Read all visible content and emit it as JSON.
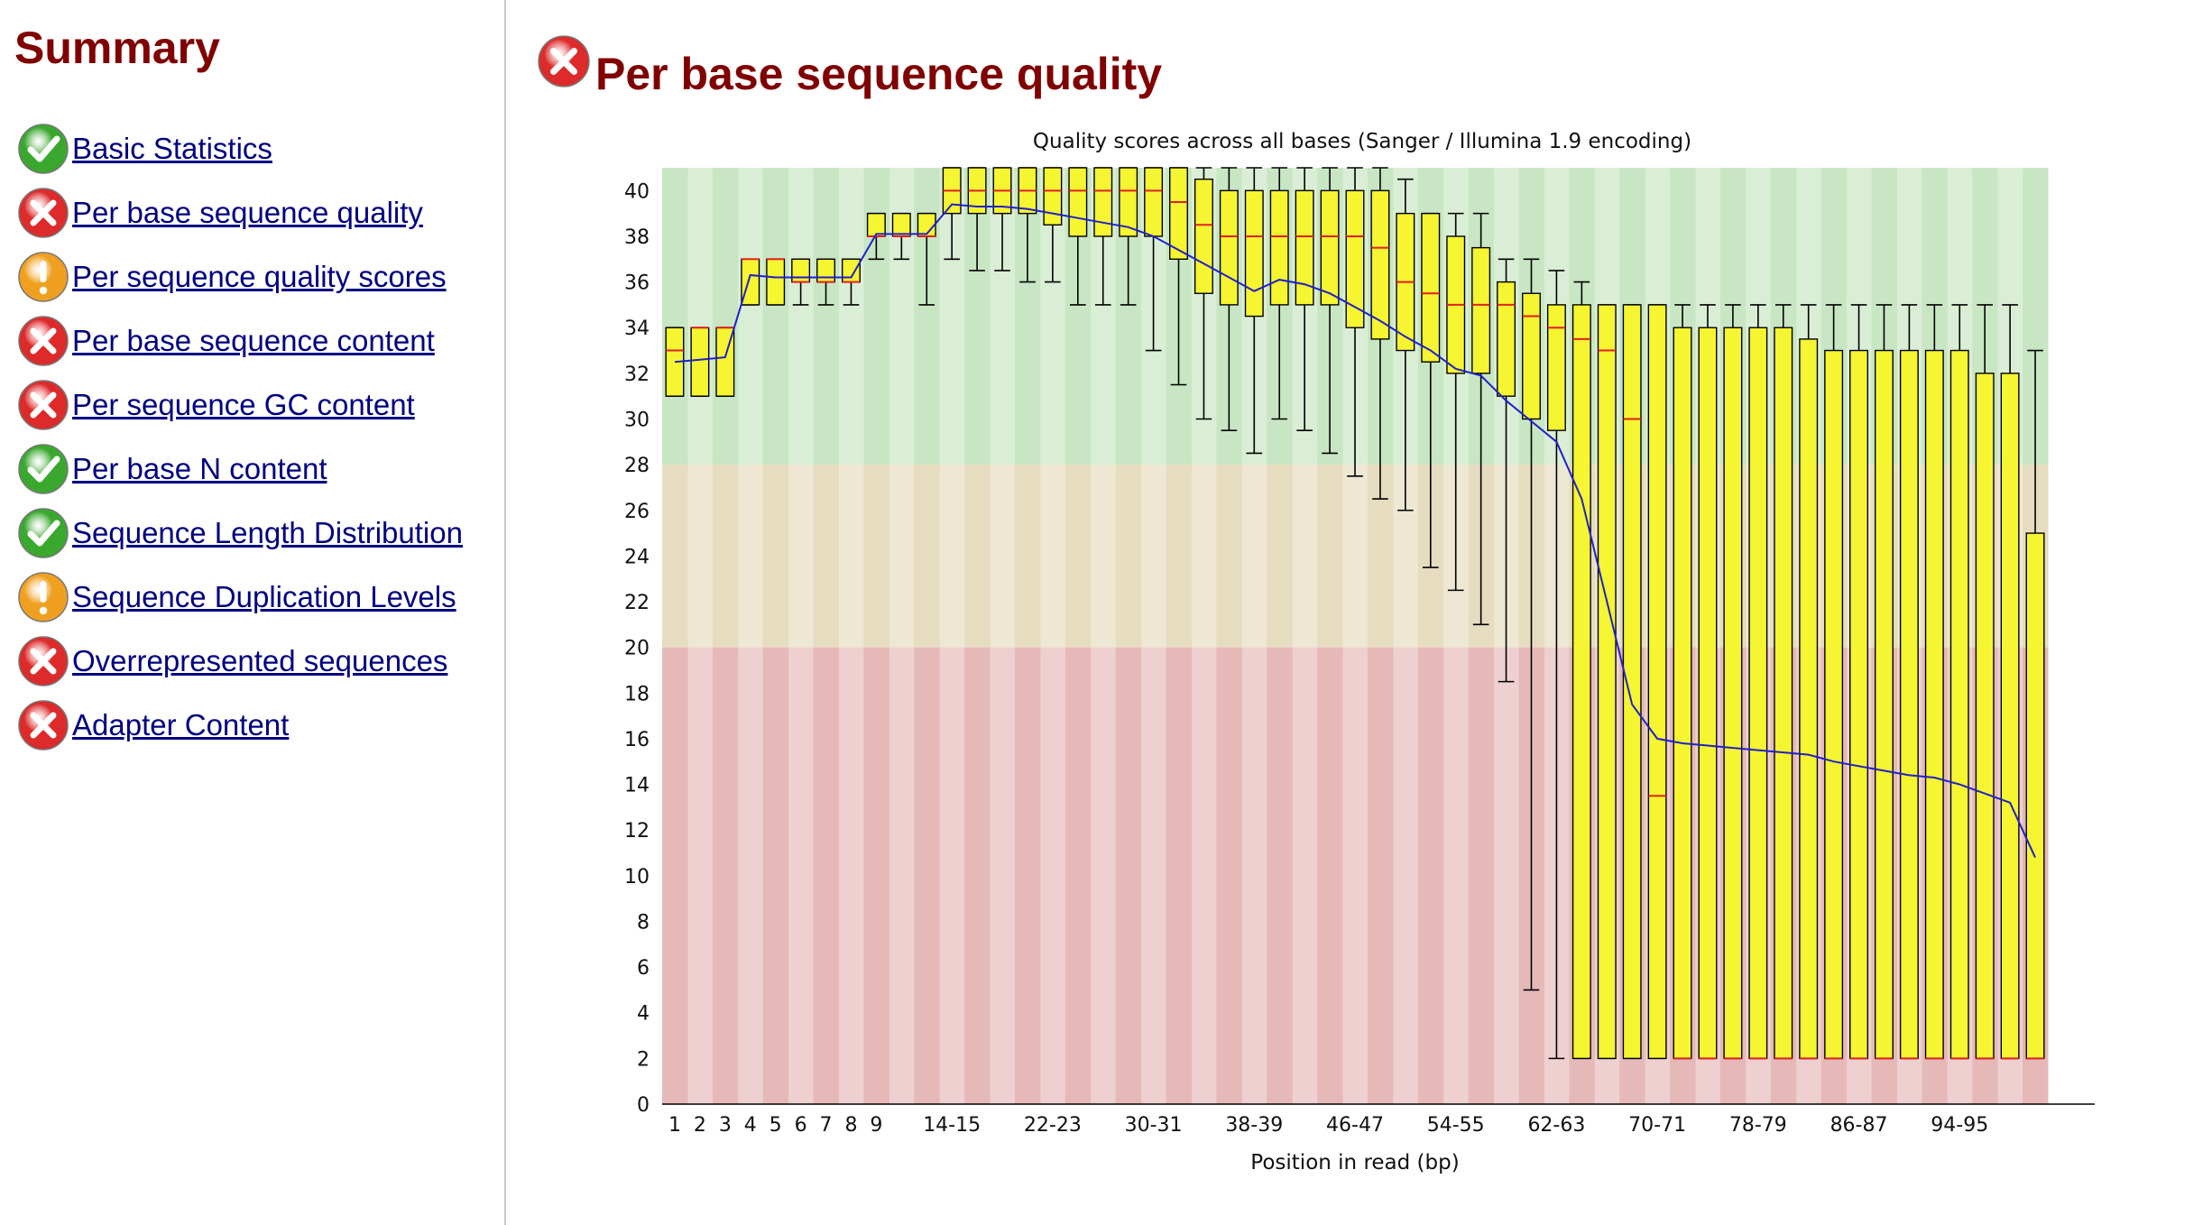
{
  "sidebar": {
    "title": "Summary",
    "modules": [
      {
        "label": "Basic Statistics",
        "status": "pass"
      },
      {
        "label": "Per base sequence quality",
        "status": "fail"
      },
      {
        "label": "Per sequence quality scores",
        "status": "warn"
      },
      {
        "label": "Per base sequence content",
        "status": "fail"
      },
      {
        "label": "Per sequence GC content",
        "status": "fail"
      },
      {
        "label": "Per base N content",
        "status": "pass"
      },
      {
        "label": "Sequence Length Distribution",
        "status": "pass"
      },
      {
        "label": "Sequence Duplication Levels",
        "status": "warn"
      },
      {
        "label": "Overrepresented sequences",
        "status": "fail"
      },
      {
        "label": "Adapter Content",
        "status": "fail"
      }
    ]
  },
  "main": {
    "title": "Per base sequence quality",
    "status": "fail"
  },
  "icons": {
    "pass": "check-circle-icon",
    "warn": "exclamation-circle-icon",
    "fail": "cross-circle-icon"
  },
  "colors": {
    "heading": "#800000",
    "link": "#000080",
    "pass": "#3aa82e",
    "warn": "#f0a020",
    "fail": "#dd2a2a",
    "zone_good": "#c8e6c3",
    "zone_ok": "#e6dcc0",
    "zone_poor": "#e6b9b9",
    "box_fill": "#f5f531",
    "median": "#e02020",
    "mean_line": "#2020c8"
  },
  "chart_data": {
    "type": "boxplot",
    "title": "Quality scores across all bases (Sanger / Illumina 1.9 encoding)",
    "xlabel": "Position in read (bp)",
    "ylabel": "",
    "ylim": [
      0,
      41
    ],
    "yticks": [
      0,
      2,
      4,
      6,
      8,
      10,
      12,
      14,
      16,
      18,
      20,
      22,
      24,
      26,
      28,
      30,
      32,
      34,
      36,
      38,
      40
    ],
    "zones": [
      {
        "name": "good",
        "from": 28,
        "to": 41
      },
      {
        "name": "reasonable",
        "from": 20,
        "to": 28
      },
      {
        "name": "poor",
        "from": 0,
        "to": 20
      }
    ],
    "x_tick_labels": [
      "1",
      "2",
      "3",
      "4",
      "5",
      "6",
      "7",
      "8",
      "9",
      "14-15",
      "22-23",
      "30-31",
      "38-39",
      "46-47",
      "54-55",
      "62-63",
      "70-71",
      "78-79",
      "86-87",
      "94-95"
    ],
    "categories": [
      "1",
      "2",
      "3",
      "4",
      "5",
      "6",
      "7",
      "8",
      "9",
      "10-11",
      "12-13",
      "14-15",
      "16-17",
      "18-19",
      "20-21",
      "22-23",
      "24-25",
      "26-27",
      "28-29",
      "30-31",
      "32-33",
      "34-35",
      "36-37",
      "38-39",
      "40-41",
      "42-43",
      "44-45",
      "46-47",
      "48-49",
      "50-51",
      "52-53",
      "54-55",
      "56-57",
      "58-59",
      "60-61",
      "62-63",
      "64-65",
      "66-67",
      "68-69",
      "70-71",
      "72-73",
      "74-75",
      "76-77",
      "78-79",
      "80-81",
      "82-83",
      "84-85",
      "86-87",
      "88-89",
      "90-91",
      "92-93",
      "94-95",
      "96-97",
      "98-99",
      "100-101"
    ],
    "series": [
      {
        "name": "whisker_low",
        "values": [
          31,
          31,
          31,
          35,
          35,
          35,
          35,
          35,
          37,
          37,
          35,
          37,
          36.5,
          36.5,
          36,
          36,
          35,
          35,
          35,
          33,
          31.5,
          30,
          29.5,
          28.5,
          30,
          29.5,
          28.5,
          27.5,
          26.5,
          26,
          23.5,
          22.5,
          21,
          18.5,
          5,
          2,
          2,
          2,
          2,
          2,
          2,
          2,
          2,
          2,
          2,
          2,
          2,
          2,
          2,
          2,
          2,
          2,
          2,
          2,
          2
        ]
      },
      {
        "name": "q1",
        "values": [
          31,
          31,
          31,
          35,
          35,
          36,
          36,
          36,
          38,
          38,
          38,
          39,
          39,
          39,
          39,
          38.5,
          38,
          38,
          38,
          38,
          37,
          35.5,
          35,
          34.5,
          35,
          35,
          35,
          34,
          33.5,
          33,
          32.5,
          32,
          32,
          31,
          30,
          29.5,
          2,
          2,
          2,
          2,
          2,
          2,
          2,
          2,
          2,
          2,
          2,
          2,
          2,
          2,
          2,
          2,
          2,
          2,
          2
        ]
      },
      {
        "name": "median",
        "values": [
          33,
          34,
          34,
          37,
          37,
          36,
          36,
          36,
          38,
          38,
          38,
          40,
          40,
          40,
          40,
          40,
          40,
          40,
          40,
          40,
          39.5,
          38.5,
          38,
          38,
          38,
          38,
          38,
          38,
          37.5,
          36,
          35.5,
          35,
          35,
          35,
          34.5,
          34,
          33.5,
          33,
          30,
          13.5,
          2,
          2,
          2,
          2,
          2,
          2,
          2,
          2,
          2,
          2,
          2,
          2,
          2,
          2,
          2
        ]
      },
      {
        "name": "q3",
        "values": [
          34,
          34,
          34,
          37,
          37,
          37,
          37,
          37,
          39,
          39,
          39,
          41,
          41,
          41,
          41,
          41,
          41,
          41,
          41,
          41,
          41,
          40.5,
          40,
          40,
          40,
          40,
          40,
          40,
          40,
          39,
          39,
          38,
          37.5,
          36,
          35.5,
          35,
          35,
          35,
          35,
          35,
          34,
          34,
          34,
          34,
          34,
          33.5,
          33,
          33,
          33,
          33,
          33,
          33,
          32,
          32,
          25
        ]
      },
      {
        "name": "whisker_high",
        "values": [
          34,
          34,
          34,
          37,
          37,
          37,
          37,
          37,
          39,
          39,
          39,
          41,
          41,
          41,
          41,
          41,
          41,
          41,
          41,
          41,
          41,
          41,
          41,
          41,
          41,
          41,
          41,
          41,
          41,
          40.5,
          39,
          39,
          39,
          37,
          37,
          36.5,
          36,
          35,
          35,
          35,
          35,
          35,
          35,
          35,
          35,
          35,
          35,
          35,
          35,
          35,
          35,
          35,
          35,
          35,
          33
        ]
      },
      {
        "name": "mean",
        "values": [
          32.5,
          32.6,
          32.7,
          36.3,
          36.2,
          36.2,
          36.2,
          36.2,
          38.1,
          38.1,
          38.1,
          39.4,
          39.3,
          39.3,
          39.2,
          39.0,
          38.8,
          38.6,
          38.4,
          38.0,
          37.4,
          36.8,
          36.2,
          35.6,
          36.1,
          35.9,
          35.5,
          34.9,
          34.3,
          33.6,
          33.0,
          32.2,
          31.9,
          30.8,
          29.9,
          29.0,
          26.5,
          22.0,
          17.5,
          16.0,
          15.8,
          15.7,
          15.6,
          15.5,
          15.4,
          15.3,
          15.0,
          14.8,
          14.6,
          14.4,
          14.3,
          14.0,
          13.6,
          13.2,
          10.8
        ]
      }
    ],
    "grid": false
  }
}
